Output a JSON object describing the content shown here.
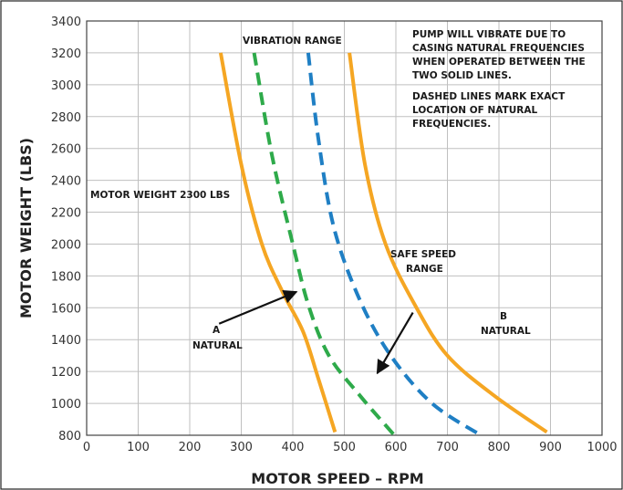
{
  "chart_data": {
    "type": "line",
    "title": "",
    "xlabel": "MOTOR SPEED – RPM",
    "ylabel": "MOTOR WEIGHT (LBS)",
    "xlim": [
      0,
      1000
    ],
    "ylim": [
      800,
      3400
    ],
    "xticks": [
      0,
      100,
      200,
      300,
      400,
      500,
      600,
      700,
      800,
      900,
      1000
    ],
    "yticks": [
      800,
      1000,
      1200,
      1400,
      1600,
      1800,
      2000,
      2200,
      2400,
      2600,
      2800,
      3000,
      3200,
      3400
    ],
    "grid": true,
    "series": [
      {
        "color": "#f5a623",
        "style": "solid",
        "points": [
          [
            260,
            3200
          ],
          [
            300,
            2500
          ],
          [
            340,
            2000
          ],
          [
            380,
            1700
          ],
          [
            420,
            1450
          ],
          [
            450,
            1150
          ],
          [
            482,
            820
          ]
        ]
      },
      {
        "color": "#2eaa4a",
        "style": "dashed",
        "points": [
          [
            325,
            3200
          ],
          [
            360,
            2550
          ],
          [
            400,
            2000
          ],
          [
            430,
            1620
          ],
          [
            470,
            1300
          ],
          [
            530,
            1050
          ],
          [
            597,
            800
          ]
        ]
      },
      {
        "color": "#1f7fc4",
        "style": "dashed",
        "points": [
          [
            430,
            3200
          ],
          [
            450,
            2650
          ],
          [
            480,
            2100
          ],
          [
            530,
            1650
          ],
          [
            590,
            1300
          ],
          [
            670,
            1000
          ],
          [
            765,
            800
          ]
        ]
      },
      {
        "color": "#f5a623",
        "style": "solid",
        "points": [
          [
            510,
            3200
          ],
          [
            540,
            2500
          ],
          [
            580,
            2000
          ],
          [
            640,
            1600
          ],
          [
            700,
            1300
          ],
          [
            790,
            1050
          ],
          [
            893,
            820
          ]
        ]
      }
    ],
    "annotations": {
      "vibration_range": "VIBRATION RANGE",
      "note_1": [
        "PUMP WILL VIBRATE DUE TO",
        "CASING NATURAL FREQUENCIES",
        "WHEN OPERATED BETWEEN THE",
        "TWO SOLID LINES."
      ],
      "note_2": [
        "DASHED LINES MARK EXACT",
        "LOCATION OF NATURAL",
        "FREQUENCIES."
      ],
      "motor_weight": "MOTOR WEIGHT 2300 LBS",
      "safe_speed": [
        "SAFE SPEED",
        "RANGE"
      ],
      "a_label": [
        "A",
        "NATURAL"
      ],
      "b_label": [
        "B",
        "NATURAL"
      ]
    },
    "arrows": [
      {
        "from": [
          257,
          1500
        ],
        "to": [
          407,
          1700
        ]
      },
      {
        "from": [
          633,
          1570
        ],
        "to": [
          564,
          1190
        ]
      }
    ]
  }
}
